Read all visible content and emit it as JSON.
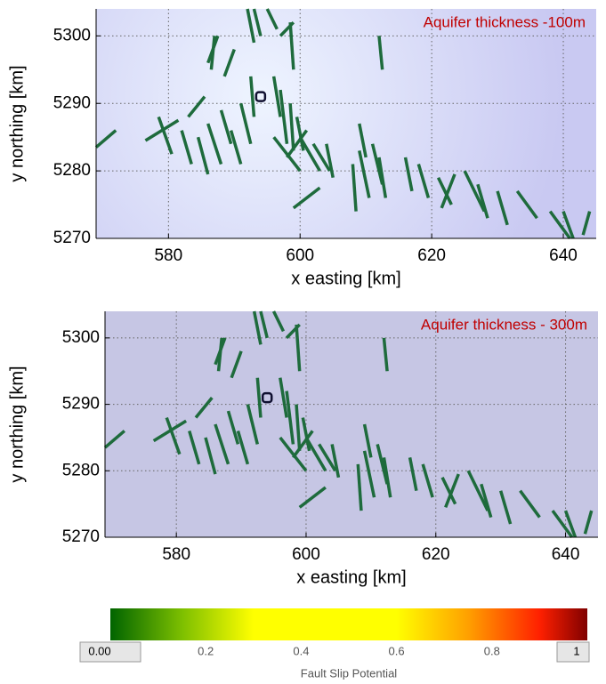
{
  "chart_data": [
    {
      "type": "faultmap",
      "annotation": "Aquifer thickness -100m",
      "xlabel": "x easting [km]",
      "ylabel": "y northing [km]",
      "xlim": [
        569,
        645
      ],
      "ylim": [
        5270,
        5304
      ],
      "xticks": [
        580,
        600,
        620,
        640
      ],
      "yticks": [
        5270,
        5280,
        5290,
        5300
      ],
      "grid": true,
      "background": "#c9c9f2",
      "background_center": "#eef4ff",
      "color": "#1e6b3c",
      "well": [
        594,
        5291
      ],
      "faults": [
        [
          569,
          5283.5,
          572,
          5286
        ],
        [
          576.5,
          5284.5,
          581.5,
          5287.5
        ],
        [
          578.5,
          5288,
          580.5,
          5282.5
        ],
        [
          582,
          5286,
          583.5,
          5281
        ],
        [
          583,
          5288,
          585.5,
          5291
        ],
        [
          584.5,
          5285,
          586,
          5279.5
        ],
        [
          586,
          5287,
          588,
          5281
        ],
        [
          588,
          5289,
          589.5,
          5284
        ],
        [
          589.5,
          5286,
          591,
          5281
        ],
        [
          591,
          5290,
          592.5,
          5284
        ],
        [
          592.5,
          5294,
          593,
          5288
        ],
        [
          586,
          5296,
          587.5,
          5300
        ],
        [
          587,
          5300,
          586.5,
          5295
        ],
        [
          588.5,
          5294,
          590,
          5298
        ],
        [
          592,
          5304,
          593,
          5299
        ],
        [
          593,
          5304,
          594,
          5300
        ],
        [
          595,
          5304,
          596.5,
          5301
        ],
        [
          597,
          5300,
          599,
          5302
        ],
        [
          598.5,
          5302,
          599,
          5295
        ],
        [
          596,
          5294,
          597,
          5288
        ],
        [
          597,
          5292,
          598,
          5284
        ],
        [
          598.5,
          5290,
          599,
          5283
        ],
        [
          599.5,
          5288,
          600.5,
          5283
        ],
        [
          596,
          5285,
          600,
          5280
        ],
        [
          598,
          5282,
          601,
          5286
        ],
        [
          600,
          5285,
          603,
          5280
        ],
        [
          602,
          5284,
          604.5,
          5280
        ],
        [
          604,
          5284,
          605,
          5279
        ],
        [
          599,
          5274.5,
          603,
          5277.5
        ],
        [
          608,
          5281,
          608.5,
          5274
        ],
        [
          609,
          5283,
          610.5,
          5276
        ],
        [
          609,
          5287,
          610,
          5282
        ],
        [
          611,
          5284,
          612.5,
          5278
        ],
        [
          612,
          5282,
          613,
          5276
        ],
        [
          612,
          5300,
          612.5,
          5295
        ],
        [
          616,
          5282,
          617,
          5277
        ],
        [
          618,
          5281,
          619.5,
          5276
        ],
        [
          621,
          5279,
          623,
          5275
        ],
        [
          621.5,
          5274.5,
          623.5,
          5279.5
        ],
        [
          625,
          5280,
          628,
          5274
        ],
        [
          627,
          5278,
          628.5,
          5273
        ],
        [
          630,
          5277,
          631.5,
          5272
        ],
        [
          633,
          5277,
          636,
          5273
        ],
        [
          638,
          5274,
          641,
          5270
        ],
        [
          640,
          5274,
          641.5,
          5270
        ],
        [
          643,
          5270.5,
          644,
          5274
        ]
      ]
    },
    {
      "type": "faultmap",
      "annotation": "Aquifer thickness - 300m",
      "xlabel": "x easting [km]",
      "ylabel": "y northing [km]",
      "xlim": [
        569,
        645
      ],
      "ylim": [
        5270,
        5304
      ],
      "xticks": [
        580,
        600,
        620,
        640
      ],
      "yticks": [
        5270,
        5280,
        5290,
        5300
      ],
      "grid": true,
      "background": "#c6c6e4",
      "background_center": "#c6c6e4",
      "color": "#1e6b3c",
      "well": [
        594,
        5291
      ],
      "faults": [
        [
          569,
          5283.5,
          572,
          5286
        ],
        [
          576.5,
          5284.5,
          581.5,
          5287.5
        ],
        [
          578.5,
          5288,
          580.5,
          5282.5
        ],
        [
          582,
          5286,
          583.5,
          5281
        ],
        [
          583,
          5288,
          585.5,
          5291
        ],
        [
          584.5,
          5285,
          586,
          5279.5
        ],
        [
          586,
          5287,
          588,
          5281
        ],
        [
          588,
          5289,
          589.5,
          5284
        ],
        [
          589.5,
          5286,
          591,
          5281
        ],
        [
          591,
          5290,
          592.5,
          5284
        ],
        [
          592.5,
          5294,
          593,
          5288
        ],
        [
          586,
          5296,
          587.5,
          5300
        ],
        [
          587,
          5300,
          586.5,
          5295
        ],
        [
          588.5,
          5294,
          590,
          5298
        ],
        [
          592,
          5304,
          593,
          5299
        ],
        [
          593,
          5304,
          594,
          5300
        ],
        [
          595,
          5304,
          596.5,
          5301
        ],
        [
          597,
          5300,
          599,
          5302
        ],
        [
          598.5,
          5302,
          599,
          5295
        ],
        [
          596,
          5294,
          597,
          5288
        ],
        [
          597,
          5292,
          598,
          5284
        ],
        [
          598.5,
          5290,
          599,
          5283
        ],
        [
          599.5,
          5288,
          600.5,
          5283
        ],
        [
          596,
          5285,
          600,
          5280
        ],
        [
          598,
          5282,
          601,
          5286
        ],
        [
          600,
          5285,
          603,
          5280
        ],
        [
          602,
          5284,
          604.5,
          5280
        ],
        [
          604,
          5284,
          605,
          5279
        ],
        [
          599,
          5274.5,
          603,
          5277.5
        ],
        [
          608,
          5281,
          608.5,
          5274
        ],
        [
          609,
          5283,
          610.5,
          5276
        ],
        [
          609,
          5287,
          610,
          5282
        ],
        [
          611,
          5284,
          612.5,
          5278
        ],
        [
          612,
          5282,
          613,
          5276
        ],
        [
          612,
          5300,
          612.5,
          5295
        ],
        [
          616,
          5282,
          617,
          5277
        ],
        [
          618,
          5281,
          619.5,
          5276
        ],
        [
          621,
          5279,
          623,
          5275
        ],
        [
          621.5,
          5274.5,
          623.5,
          5279.5
        ],
        [
          625,
          5280,
          628,
          5274
        ],
        [
          627,
          5278,
          628.5,
          5273
        ],
        [
          630,
          5277,
          631.5,
          5272
        ],
        [
          633,
          5277,
          636,
          5273
        ],
        [
          638,
          5274,
          641,
          5270
        ],
        [
          640,
          5274,
          641.5,
          5270
        ],
        [
          643,
          5270.5,
          644,
          5274
        ]
      ]
    },
    {
      "type": "colorbar",
      "xlabel": "Fault Slip Potential",
      "xlim": [
        0,
        1
      ],
      "xticks": [
        {
          "value": 0,
          "label": "0.00"
        },
        0.2,
        0.4,
        0.6,
        0.8,
        {
          "value": 1,
          "label": "1"
        }
      ],
      "colorscale": [
        [
          0,
          "#006400"
        ],
        [
          0.15,
          "#7dbf00"
        ],
        [
          0.3,
          "#ffff00"
        ],
        [
          0.6,
          "#ffff00"
        ],
        [
          0.75,
          "#ffa000"
        ],
        [
          0.9,
          "#ff2000"
        ],
        [
          1,
          "#800000"
        ]
      ]
    }
  ]
}
